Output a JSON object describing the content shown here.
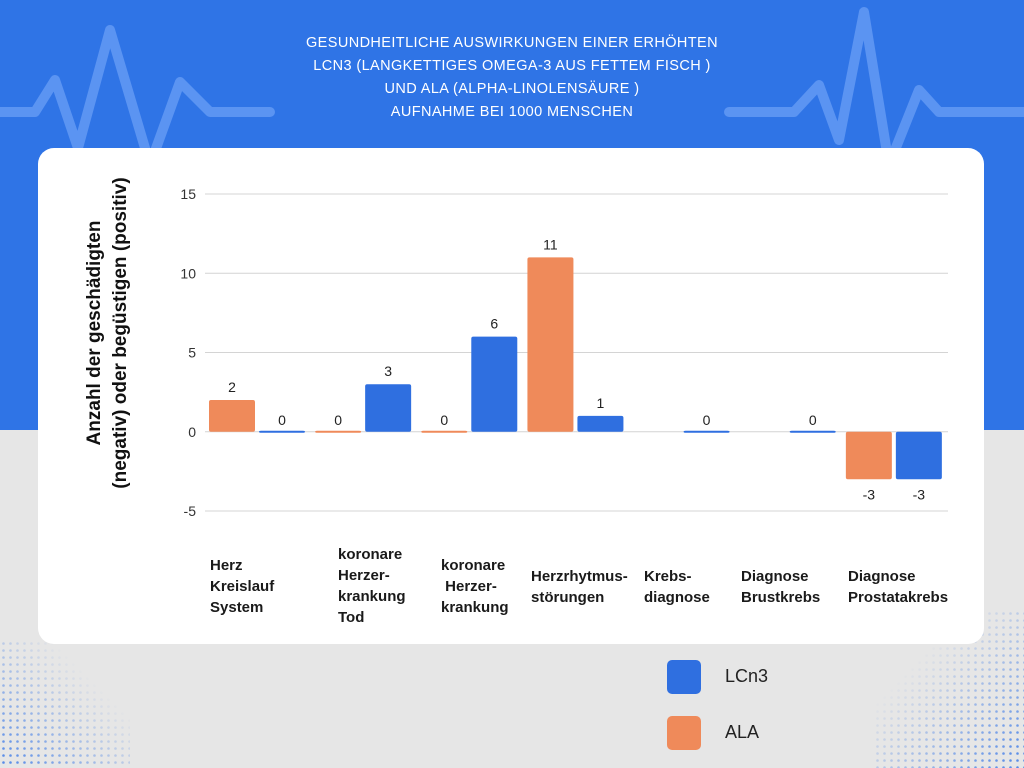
{
  "title_lines": [
    "GESUNDHEITLICHE AUSWIRKUNGEN EINER ERHÖHTEN",
    "LCN3 (LANGKETTIGES OMEGA-3 AUS FETTEM FISCH )",
    "UND ALA (ALPHA-LINOLENSÄURE )",
    "AUFNAHME BEI 1000 MENSCHEN"
  ],
  "colors": {
    "header_blue": "#2f74e6",
    "lcn3": "#2f6fe0",
    "ala": "#ef8a5a",
    "grid": "#d4d4d4"
  },
  "chart_data": {
    "type": "bar",
    "title": "GESUNDHEITLICHE AUSWIRKUNGEN EINER ERHÖHTEN LCN3 (LANGKETTIGES OMEGA-3 AUS FETTEM FISCH ) UND ALA (ALPHA-LINOLENSÄURE ) AUFNAHME BEI 1000 MENSCHEN",
    "ylabel_lines": [
      "Anzahl der geschädigten",
      "(negativ) oder begüstigen (positiv)"
    ],
    "xlabel": "",
    "ylim": [
      -5,
      15
    ],
    "yticks": [
      -5,
      0,
      5,
      10,
      15
    ],
    "grid": true,
    "categories": [
      [
        "Herz",
        "Kreislauf",
        "System"
      ],
      [
        "koronare",
        "Herzer-",
        "krankung",
        "Tod"
      ],
      [
        "koronare",
        " Herzer-",
        "krankung"
      ],
      [
        "Herzrhytmus-",
        "störungen"
      ],
      [
        "Krebs-",
        "diagnose"
      ],
      [
        "Diagnose",
        "Brustkrebs"
      ],
      [
        "Diagnose",
        "Prostatakrebs"
      ]
    ],
    "series": [
      {
        "name": "ALA",
        "color": "#ef8a5a",
        "values": [
          2,
          0,
          0,
          11,
          null,
          null,
          -3
        ],
        "labels": [
          "2",
          "0",
          "0",
          "11",
          "",
          "",
          "-3"
        ]
      },
      {
        "name": "LCn3",
        "color": "#2f6fe0",
        "values": [
          0,
          3,
          6,
          1,
          0,
          0,
          -3
        ],
        "labels": [
          "0",
          "3",
          "6",
          "1",
          "0",
          "0",
          "-3"
        ]
      }
    ],
    "legend": [
      {
        "name": "LCn3",
        "color": "#2f6fe0"
      },
      {
        "name": "ALA",
        "color": "#ef8a5a"
      }
    ],
    "legend_position": "bottom-right"
  }
}
